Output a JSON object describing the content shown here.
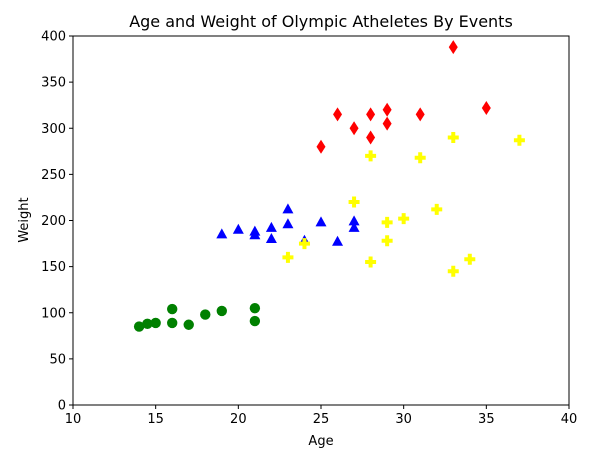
{
  "chart_data": {
    "type": "scatter",
    "title": "Age and Weight of Olympic Atheletes By Events",
    "xlabel": "Age",
    "ylabel": "Weight",
    "xlim": [
      10,
      40
    ],
    "ylim": [
      0,
      400
    ],
    "xticks": [
      "10",
      "15",
      "20",
      "25",
      "30",
      "35",
      "40"
    ],
    "yticks": [
      "0",
      "50",
      "100",
      "150",
      "200",
      "250",
      "300",
      "350",
      "400"
    ],
    "grid": false,
    "series": [
      {
        "color": "#008000",
        "marker": "circle",
        "points": [
          [
            14,
            85
          ],
          [
            14.5,
            88
          ],
          [
            15,
            89
          ],
          [
            16,
            104
          ],
          [
            16,
            89
          ],
          [
            17,
            87
          ],
          [
            18,
            98
          ],
          [
            19,
            102
          ],
          [
            21,
            105
          ],
          [
            21,
            91
          ]
        ]
      },
      {
        "color": "#0000ff",
        "marker": "triangle",
        "points": [
          [
            19,
            185
          ],
          [
            20,
            190
          ],
          [
            21,
            188
          ],
          [
            21,
            184
          ],
          [
            22,
            192
          ],
          [
            22,
            180
          ],
          [
            23,
            212
          ],
          [
            23,
            196
          ],
          [
            24,
            178
          ],
          [
            25,
            198
          ],
          [
            26,
            177
          ],
          [
            27,
            199
          ],
          [
            27,
            192
          ]
        ]
      },
      {
        "color": "#ffff00",
        "marker": "plus",
        "points": [
          [
            23,
            160
          ],
          [
            24,
            175
          ],
          [
            27,
            220
          ],
          [
            28,
            270
          ],
          [
            28,
            155
          ],
          [
            29,
            198
          ],
          [
            29,
            178
          ],
          [
            30,
            202
          ],
          [
            31,
            268
          ],
          [
            32,
            212
          ],
          [
            33,
            290
          ],
          [
            33,
            145
          ],
          [
            34,
            158
          ],
          [
            37,
            287
          ]
        ]
      },
      {
        "color": "#ff0000",
        "marker": "diamond",
        "points": [
          [
            25,
            280
          ],
          [
            26,
            315
          ],
          [
            27,
            300
          ],
          [
            28,
            315
          ],
          [
            28,
            290
          ],
          [
            29,
            320
          ],
          [
            29,
            305
          ],
          [
            31,
            315
          ],
          [
            33,
            388
          ],
          [
            35,
            322
          ]
        ]
      }
    ]
  }
}
